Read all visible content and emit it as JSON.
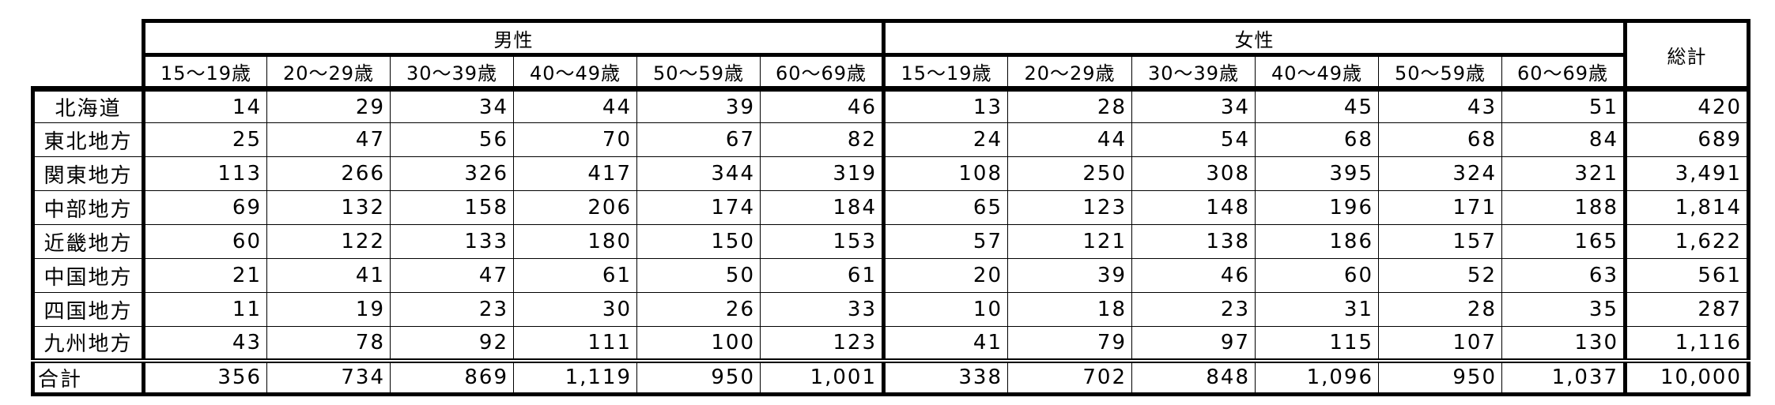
{
  "header": {
    "male": "男性",
    "female": "女性",
    "grand_total": "総計",
    "age_groups": [
      "15～19歳",
      "20～29歳",
      "30～39歳",
      "40～49歳",
      "50～59歳",
      "60～69歳"
    ]
  },
  "rows": [
    {
      "region": "北海道",
      "male": [
        "14",
        "29",
        "34",
        "44",
        "39",
        "46"
      ],
      "female": [
        "13",
        "28",
        "34",
        "45",
        "43",
        "51"
      ],
      "total": "420"
    },
    {
      "region": "東北地方",
      "male": [
        "25",
        "47",
        "56",
        "70",
        "67",
        "82"
      ],
      "female": [
        "24",
        "44",
        "54",
        "68",
        "68",
        "84"
      ],
      "total": "689"
    },
    {
      "region": "関東地方",
      "male": [
        "113",
        "266",
        "326",
        "417",
        "344",
        "319"
      ],
      "female": [
        "108",
        "250",
        "308",
        "395",
        "324",
        "321"
      ],
      "total": "3,491"
    },
    {
      "region": "中部地方",
      "male": [
        "69",
        "132",
        "158",
        "206",
        "174",
        "184"
      ],
      "female": [
        "65",
        "123",
        "148",
        "196",
        "171",
        "188"
      ],
      "total": "1,814"
    },
    {
      "region": "近畿地方",
      "male": [
        "60",
        "122",
        "133",
        "180",
        "150",
        "153"
      ],
      "female": [
        "57",
        "121",
        "138",
        "186",
        "157",
        "165"
      ],
      "total": "1,622"
    },
    {
      "region": "中国地方",
      "male": [
        "21",
        "41",
        "47",
        "61",
        "50",
        "61"
      ],
      "female": [
        "20",
        "39",
        "46",
        "60",
        "52",
        "63"
      ],
      "total": "561"
    },
    {
      "region": "四国地方",
      "male": [
        "11",
        "19",
        "23",
        "30",
        "26",
        "33"
      ],
      "female": [
        "10",
        "18",
        "23",
        "31",
        "28",
        "35"
      ],
      "total": "287"
    },
    {
      "region": "九州地方",
      "male": [
        "43",
        "78",
        "92",
        "111",
        "100",
        "123"
      ],
      "female": [
        "41",
        "79",
        "97",
        "115",
        "107",
        "130"
      ],
      "total": "1,116"
    }
  ],
  "total_row": {
    "label": "合計",
    "male": [
      "356",
      "734",
      "869",
      "1,119",
      "950",
      "1,001"
    ],
    "female": [
      "338",
      "702",
      "848",
      "1,096",
      "950",
      "1,037"
    ],
    "total": "10,000"
  }
}
